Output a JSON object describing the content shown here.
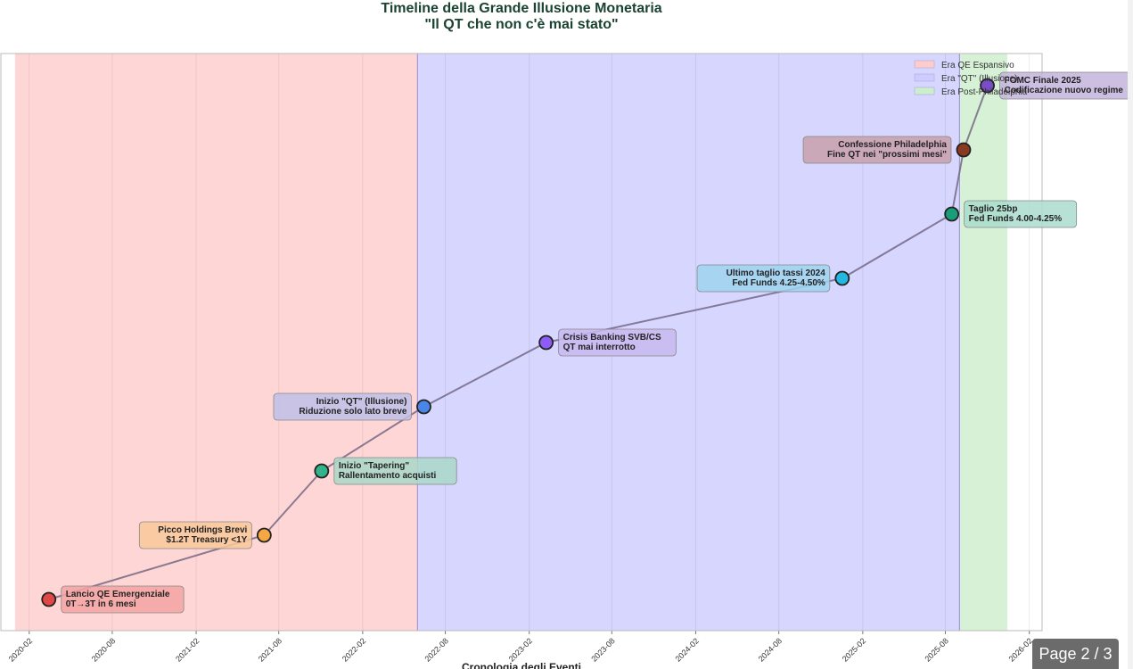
{
  "page": {
    "indicator": "Page 2 / 3"
  },
  "chart_data": {
    "type": "scatter",
    "title": "Timeline della Grande Illusione Monetaria",
    "subtitle": "\"Il QT che non c'è mai stato\"",
    "xlabel": "Cronologia degli Eventi",
    "ylabel": "",
    "x_type": "date",
    "xlim": [
      "2019-12-01",
      "2026-03-01"
    ],
    "x_ticks": [
      "2020-02",
      "2020-08",
      "2021-02",
      "2021-08",
      "2022-02",
      "2022-08",
      "2023-02",
      "2023-08",
      "2024-02",
      "2024-08",
      "2025-02",
      "2025-08",
      "2026-02"
    ],
    "y_ticks_visible": false,
    "grid": true,
    "legend_position": "top-right",
    "regions": [
      {
        "label": "Era QE Espansivo",
        "start": "2020-01-01",
        "end": "2022-06-01",
        "color": "#ffcccc"
      },
      {
        "label": "Era \"QT\" (Illusione)",
        "start": "2022-06-01",
        "end": "2025-09-01",
        "color": "#ccccff"
      },
      {
        "label": "Era Post-Philadelphia",
        "start": "2025-09-01",
        "end": "2025-12-15",
        "color": "#cceecc"
      }
    ],
    "events": [
      {
        "date": "2020-03-15",
        "level": 1,
        "label_1": "Lancio QE Emergenziale",
        "label_2": "0T→3T in 6 mesi",
        "color": "#e04848",
        "box_color": "#f4a3a3",
        "side": "right"
      },
      {
        "date": "2021-06-30",
        "level": 2,
        "label_1": "Picco Holdings Brevi",
        "label_2": "$1.2T Treasury <1Y",
        "color": "#f4a742",
        "box_color": "#f9c99a",
        "side": "left"
      },
      {
        "date": "2021-11-03",
        "level": 3,
        "label_1": "Inizio \"Tapering\"",
        "label_2": "Rallentamento acquisti",
        "color": "#33b38a",
        "box_color": "#a9d8c8",
        "side": "right"
      },
      {
        "date": "2022-06-15",
        "level": 4,
        "label_1": "Inizio \"QT\" (Illusione)",
        "label_2": "Riduzione solo lato breve",
        "color": "#4a86e8",
        "box_color": "#c0c0e8",
        "side": "left"
      },
      {
        "date": "2023-03-10",
        "level": 5,
        "label_1": "Crisis Banking SVB/CS",
        "label_2": "QT mai interrotto",
        "color": "#8d5cf6",
        "box_color": "#c8b8f0",
        "side": "right"
      },
      {
        "date": "2024-12-18",
        "level": 6,
        "label_1": "Ultimo taglio tassi 2024",
        "label_2": "Fed Funds 4.25-4.50%",
        "color": "#22b8e0",
        "box_color": "#9dd3ef",
        "side": "left"
      },
      {
        "date": "2025-08-15",
        "level": 7,
        "label_1": "Taglio 25bp",
        "label_2": "Fed Funds 4.00-4.25%",
        "color": "#1a9e7a",
        "box_color": "#a9dccc",
        "side": "right"
      },
      {
        "date": "2025-09-10",
        "level": 8,
        "label_1": "Confessione Philadelphia",
        "label_2": "Fine QT nei \"prossimi mesi\"",
        "color": "#8b3a22",
        "box_color": "#c8a0aa",
        "side": "left"
      },
      {
        "date": "2025-11-01",
        "level": 9,
        "label_1": "FOMC Finale 2025",
        "label_2": "Codificazione nuovo regime",
        "color": "#7b4cc8",
        "box_color": "#c4b4dc",
        "side": "right"
      }
    ]
  }
}
